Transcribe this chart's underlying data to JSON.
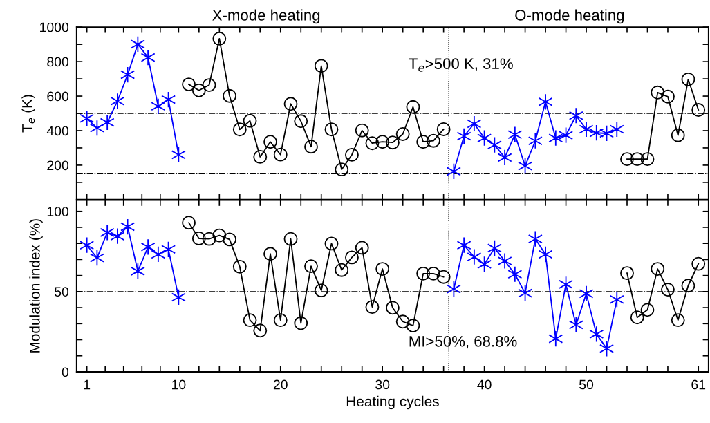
{
  "chart_data": [
    {
      "type": "line",
      "ylabel": "T$_{e}$ (K)",
      "annotations": [
        "X-mode heating",
        "O-mode heating",
        "T$_{e}$>500 K, 31%"
      ],
      "series": [
        {
          "color": "#0000ff",
          "marker": "cross",
          "x": [
            1,
            2,
            3,
            4,
            5,
            6,
            7,
            8,
            9,
            10
          ],
          "values": [
            471,
            415,
            448,
            571,
            724,
            901,
            824,
            541,
            580,
            260
          ]
        },
        {
          "color": "#000000",
          "marker": "circle",
          "x": [
            11,
            12,
            13,
            14,
            15,
            16,
            17,
            18,
            19,
            20,
            21,
            22,
            23,
            24,
            25,
            26,
            27,
            28,
            29,
            30,
            31,
            32,
            33,
            34,
            35,
            36
          ],
          "values": [
            668,
            633,
            664,
            933,
            601,
            407,
            457,
            248,
            335,
            261,
            555,
            455,
            307,
            775,
            407,
            175,
            260,
            401,
            327,
            335,
            331,
            380,
            537,
            335,
            341,
            408
          ]
        },
        {
          "color": "#0000ff",
          "marker": "cross",
          "x": [
            37,
            38,
            39,
            40,
            41,
            42,
            43,
            44,
            45,
            46,
            47,
            48,
            49,
            50,
            51,
            52,
            53
          ],
          "values": [
            164,
            368,
            440,
            357,
            317,
            244,
            377,
            195,
            341,
            567,
            357,
            373,
            487,
            408,
            387,
            384,
            408
          ]
        },
        {
          "color": "#000000",
          "marker": "circle",
          "x": [
            54,
            55,
            56,
            57,
            58,
            59,
            60,
            61
          ],
          "values": [
            235,
            235,
            235,
            621,
            597,
            373,
            697,
            520
          ]
        }
      ],
      "xlim": [
        0,
        62
      ],
      "ylim": [
        0,
        1000
      ],
      "xticks": [
        {
          "value": 1,
          "label": null
        },
        {
          "value": 2.8,
          "label": null
        },
        {
          "value": 4.6,
          "label": null
        },
        {
          "value": 6.4,
          "label": null
        },
        {
          "value": 8.2,
          "label": null
        },
        {
          "value": 10,
          "label": null
        },
        {
          "value": 12,
          "label": null
        },
        {
          "value": 14,
          "label": null
        },
        {
          "value": 16,
          "label": null
        },
        {
          "value": 18,
          "label": null
        },
        {
          "value": 20,
          "label": null
        },
        {
          "value": 22,
          "label": null
        },
        {
          "value": 24,
          "label": null
        },
        {
          "value": 26,
          "label": null
        },
        {
          "value": 28,
          "label": null
        },
        {
          "value": 30,
          "label": null
        },
        {
          "value": 32,
          "label": null
        },
        {
          "value": 34,
          "label": null
        },
        {
          "value": 36,
          "label": null
        },
        {
          "value": 38,
          "label": null
        },
        {
          "value": 40,
          "label": null
        },
        {
          "value": 42,
          "label": null
        },
        {
          "value": 44,
          "label": null
        },
        {
          "value": 46,
          "label": null
        },
        {
          "value": 48,
          "label": null
        },
        {
          "value": 50,
          "label": null
        },
        {
          "value": 52,
          "label": null
        },
        {
          "value": 54,
          "label": null
        },
        {
          "value": 56,
          "label": null
        },
        {
          "value": 58,
          "label": null
        },
        {
          "value": 61,
          "label": null
        }
      ],
      "yticks": [
        {
          "value": 100,
          "label": null
        },
        200,
        {
          "value": 300,
          "label": null
        },
        400,
        {
          "value": 500,
          "label": null
        },
        600,
        {
          "value": 700,
          "label": null
        },
        800,
        {
          "value": 900,
          "label": null
        },
        1000
      ],
      "tick_labels": "y",
      "grid": false,
      "line_style": "solid",
      "ref_lines": [
        {
          "axis": "y",
          "value": 500,
          "line_style": "dashdot",
          "color": "#000000"
        },
        {
          "axis": "y",
          "value": 150,
          "line_style": "dashdot",
          "color": "#000000"
        },
        {
          "axis": "x",
          "value": 36.5,
          "line_style": "dotted",
          "color": "#000000"
        }
      ]
    },
    {
      "type": "line",
      "xlabel": "Heating cycles",
      "ylabel": "Modulation index (%)",
      "annotations": [
        "MI>50%, 68.8%"
      ],
      "series": [
        {
          "color": "#0000ff",
          "marker": "cross",
          "x": [
            1,
            2,
            3,
            4,
            5,
            6,
            7,
            8,
            9,
            10
          ],
          "values": [
            78.9,
            71.0,
            86.8,
            84.5,
            90.4,
            62.7,
            77.8,
            73.2,
            76.3,
            46.5
          ]
        },
        {
          "color": "#000000",
          "marker": "circle",
          "x": [
            11,
            12,
            13,
            14,
            15,
            16,
            17,
            18,
            19,
            20,
            21,
            22,
            23,
            24,
            25,
            26,
            27,
            28,
            29,
            30,
            31,
            32,
            33,
            34,
            35,
            36
          ],
          "values": [
            92.9,
            83.1,
            82.8,
            85.0,
            82.5,
            65.5,
            32.2,
            25.7,
            73.5,
            32.2,
            82.8,
            30.3,
            65.8,
            50.7,
            79.9,
            63.4,
            71.3,
            77.3,
            40.4,
            64.1,
            39.9,
            31.3,
            28.8,
            61.2,
            61.2,
            59.1
          ]
        },
        {
          "color": "#0000ff",
          "marker": "cross",
          "x": [
            37,
            38,
            39,
            40,
            41,
            42,
            43,
            44,
            45,
            46,
            47,
            48,
            49,
            50,
            51,
            52,
            53
          ],
          "values": [
            51.6,
            78.9,
            71.6,
            67.0,
            77.1,
            69.1,
            60.8,
            49.0,
            82.8,
            73.2,
            20.6,
            54.5,
            29.3,
            48.7,
            23.5,
            14.5,
            45.1
          ]
        },
        {
          "color": "#000000",
          "marker": "circle",
          "x": [
            54,
            55,
            56,
            57,
            58,
            59,
            60,
            61
          ],
          "values": [
            61.5,
            33.9,
            38.6,
            64.1,
            51.2,
            32.2,
            53.7,
            67.3
          ]
        }
      ],
      "xlim": [
        0,
        62
      ],
      "ylim": [
        0,
        107
      ],
      "xticks": [
        1,
        {
          "value": 2.8,
          "label": null
        },
        {
          "value": 4.6,
          "label": null
        },
        {
          "value": 6.4,
          "label": null
        },
        {
          "value": 8.2,
          "label": null
        },
        10,
        {
          "value": 12,
          "label": null
        },
        {
          "value": 14,
          "label": null
        },
        {
          "value": 16,
          "label": null
        },
        {
          "value": 18,
          "label": null
        },
        20,
        {
          "value": 22,
          "label": null
        },
        {
          "value": 24,
          "label": null
        },
        {
          "value": 26,
          "label": null
        },
        {
          "value": 28,
          "label": null
        },
        30,
        {
          "value": 32,
          "label": null
        },
        {
          "value": 34,
          "label": null
        },
        {
          "value": 36,
          "label": null
        },
        {
          "value": 38,
          "label": null
        },
        40,
        {
          "value": 42,
          "label": null
        },
        {
          "value": 44,
          "label": null
        },
        {
          "value": 46,
          "label": null
        },
        {
          "value": 48,
          "label": null
        },
        50,
        {
          "value": 52,
          "label": null
        },
        {
          "value": 54,
          "label": null
        },
        {
          "value": 56,
          "label": null
        },
        {
          "value": 58,
          "label": null
        },
        61
      ],
      "yticks": [
        0,
        {
          "value": 10,
          "label": null
        },
        {
          "value": 20,
          "label": null
        },
        {
          "value": 30,
          "label": null
        },
        {
          "value": 40,
          "label": null
        },
        50,
        {
          "value": 60,
          "label": null
        },
        {
          "value": 70,
          "label": null
        },
        {
          "value": 80,
          "label": null
        },
        {
          "value": 90,
          "label": null
        },
        100
      ],
      "grid": false,
      "line_style": "solid",
      "ref_lines": [
        {
          "axis": "y",
          "value": 50,
          "line_style": "dashdot",
          "color": "#000000"
        },
        {
          "axis": "x",
          "value": 36.5,
          "line_style": "dotted",
          "color": "#000000"
        }
      ]
    }
  ]
}
